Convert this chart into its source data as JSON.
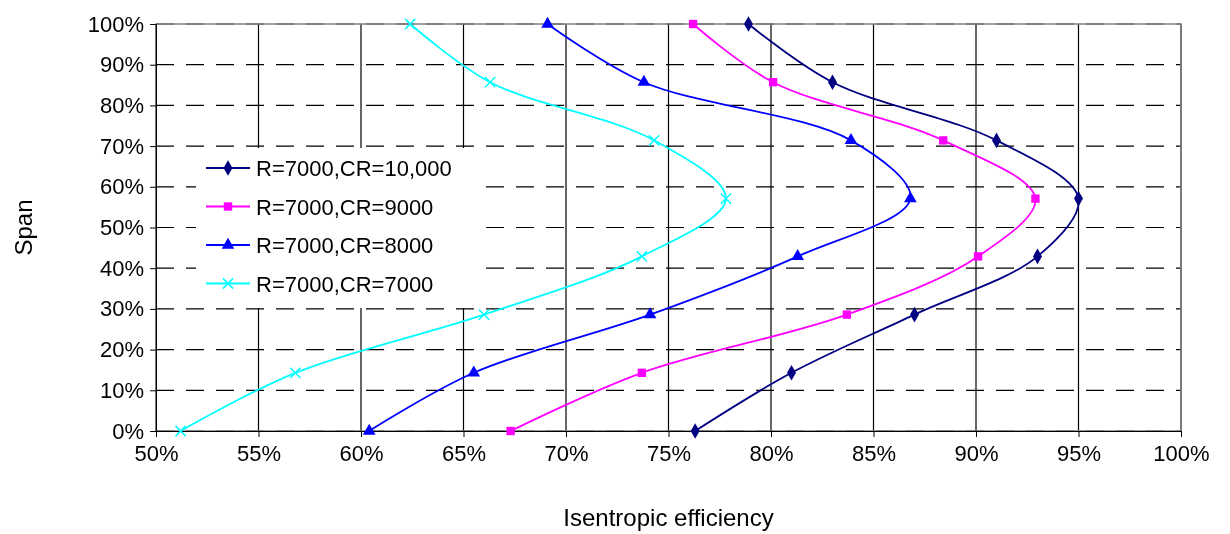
{
  "chart_data": {
    "type": "line",
    "xlabel": "Isentropic efficiency",
    "ylabel": "Span",
    "xlim": [
      50,
      100
    ],
    "ylim": [
      0,
      100
    ],
    "xticks": [
      {
        "value": 50,
        "label": "50%"
      },
      {
        "value": 55,
        "label": "55%"
      },
      {
        "value": 60,
        "label": "60%"
      },
      {
        "value": 65,
        "label": "65%"
      },
      {
        "value": 70,
        "label": "70%"
      },
      {
        "value": 75,
        "label": "75%"
      },
      {
        "value": 80,
        "label": "80%"
      },
      {
        "value": 85,
        "label": "85%"
      },
      {
        "value": 90,
        "label": "90%"
      },
      {
        "value": 95,
        "label": "95%"
      },
      {
        "value": 100,
        "label": "100%"
      }
    ],
    "yticks": [
      {
        "value": 0,
        "label": "0%"
      },
      {
        "value": 10,
        "label": "10%"
      },
      {
        "value": 20,
        "label": "20%"
      },
      {
        "value": 30,
        "label": "30%"
      },
      {
        "value": 40,
        "label": "40%"
      },
      {
        "value": 50,
        "label": "50%"
      },
      {
        "value": 60,
        "label": "60%"
      },
      {
        "value": 70,
        "label": "70%"
      },
      {
        "value": 80,
        "label": "80%"
      },
      {
        "value": 90,
        "label": "90%"
      },
      {
        "value": 100,
        "label": "100%"
      }
    ],
    "grid": true,
    "legend": "left",
    "line_style": "solid",
    "series": [
      {
        "name": "R=7000,CR=10,000",
        "color": "#000080",
        "marker": "diamond",
        "x": [
          76.3,
          81.0,
          87.0,
          93.0,
          95.0,
          91.0,
          83.0,
          78.9
        ],
        "values": [
          0,
          14.3,
          28.6,
          42.9,
          57.1,
          71.4,
          85.7,
          100
        ]
      },
      {
        "name": "R=7000,CR=9000",
        "color": "#ff00ff",
        "marker": "square",
        "x": [
          67.3,
          73.7,
          83.7,
          90.1,
          92.9,
          88.4,
          80.1,
          76.2
        ],
        "values": [
          0,
          14.3,
          28.6,
          42.9,
          57.1,
          71.4,
          85.7,
          100
        ]
      },
      {
        "name": "R=7000,CR=8000",
        "color": "#0000ff",
        "marker": "triangle",
        "x": [
          60.4,
          65.5,
          74.1,
          81.3,
          86.8,
          83.9,
          73.8,
          69.1
        ],
        "values": [
          0,
          14.3,
          28.6,
          42.9,
          57.1,
          71.4,
          85.7,
          100
        ]
      },
      {
        "name": "R=7000,CR=7000",
        "color": "#00ffff",
        "marker": "cross",
        "x": [
          51.2,
          56.8,
          66.0,
          73.7,
          77.8,
          74.3,
          66.3,
          62.4
        ],
        "values": [
          0,
          14.3,
          28.6,
          42.9,
          57.1,
          71.4,
          85.7,
          100
        ]
      }
    ]
  }
}
